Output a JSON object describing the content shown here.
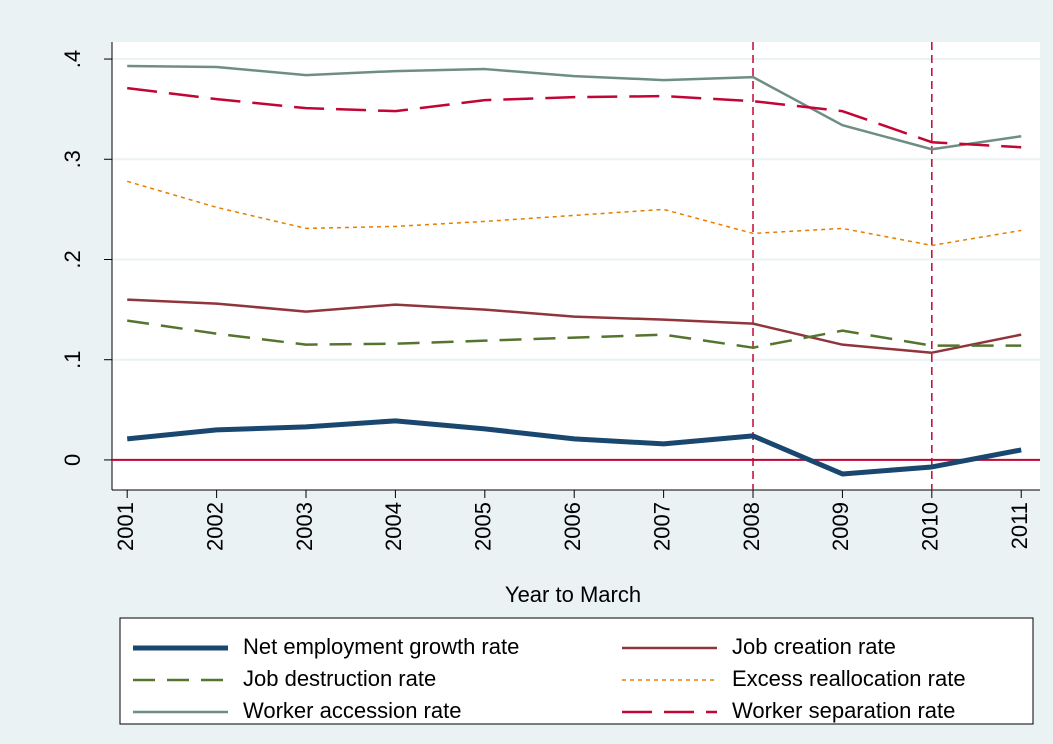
{
  "chart_data": {
    "type": "line",
    "x_label": "Year to March",
    "x": [
      2001,
      2002,
      2003,
      2004,
      2005,
      2006,
      2007,
      2008,
      2009,
      2010,
      2011
    ],
    "series": [
      {
        "name": "Net employment growth rate",
        "color": "#1a476f",
        "values": [
          0.021,
          0.03,
          0.033,
          0.039,
          0.031,
          0.021,
          0.016,
          0.024,
          -0.014,
          -0.007,
          0.01
        ]
      },
      {
        "name": "Job creation rate",
        "color": "#90353b",
        "values": [
          0.16,
          0.156,
          0.148,
          0.155,
          0.15,
          0.143,
          0.14,
          0.136,
          0.115,
          0.107,
          0.125
        ]
      },
      {
        "name": "Job destruction rate",
        "color": "#55752f",
        "values": [
          0.139,
          0.126,
          0.115,
          0.116,
          0.119,
          0.122,
          0.125,
          0.112,
          0.129,
          0.114,
          0.114
        ]
      },
      {
        "name": "Excess reallocation rate",
        "color": "#e37e00",
        "values": [
          0.278,
          0.252,
          0.231,
          0.233,
          0.238,
          0.244,
          0.25,
          0.226,
          0.231,
          0.214,
          0.229
        ]
      },
      {
        "name": "Worker accession rate",
        "color": "#6e8e84",
        "values": [
          0.393,
          0.392,
          0.384,
          0.388,
          0.39,
          0.383,
          0.379,
          0.382,
          0.334,
          0.31,
          0.323
        ]
      },
      {
        "name": "Worker separation rate",
        "color": "#c10534",
        "values": [
          0.371,
          0.36,
          0.351,
          0.348,
          0.359,
          0.362,
          0.363,
          0.358,
          0.348,
          0.317,
          0.312
        ]
      }
    ],
    "xlim": [
      2000.83,
      2011.21
    ],
    "xticks": [
      2001,
      2002,
      2003,
      2004,
      2005,
      2006,
      2007,
      2008,
      2009,
      2010,
      2011
    ],
    "ylim": [
      -0.03,
      0.417
    ],
    "yticks": [
      {
        "value": 0,
        "label": "0"
      },
      {
        "value": 0.1,
        "label": ".1"
      },
      {
        "value": 0.2,
        "label": ".2"
      },
      {
        "value": 0.3,
        "label": ".3"
      },
      {
        "value": 0.4,
        "label": ".4"
      }
    ],
    "grid": true,
    "reference_x": [
      2008,
      2010
    ],
    "reference_y": [
      0
    ],
    "reference_color": "#c10534",
    "legend": "bottom"
  }
}
